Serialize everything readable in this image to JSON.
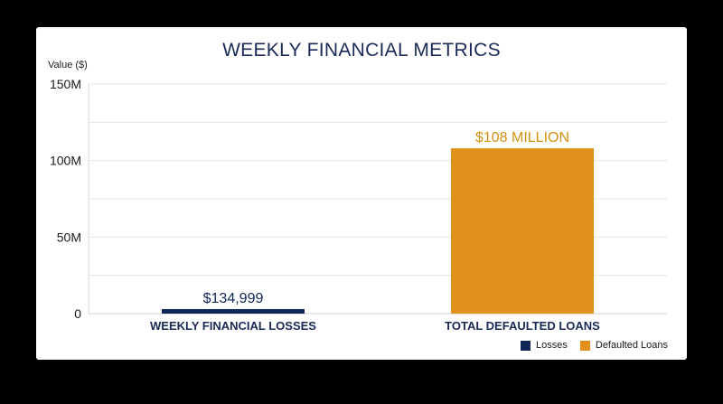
{
  "chart_data": {
    "type": "bar",
    "title": "WEEKLY FINANCIAL METRICS",
    "ylabel": "Value ($)",
    "xlabel": "",
    "ylim": [
      0,
      150000000
    ],
    "yticks": [
      {
        "value": 0,
        "label": "0"
      },
      {
        "value": 50000000,
        "label": "50M"
      },
      {
        "value": 100000000,
        "label": "100M"
      },
      {
        "value": 150000000,
        "label": "150M"
      }
    ],
    "grid": true,
    "legend_position": "bottom-right",
    "categories": [
      "WEEKLY FINANCIAL LOSSES",
      "TOTAL DEFAULTED LOANS"
    ],
    "values": [
      134999,
      108000000
    ],
    "data_labels": [
      "$134,999",
      "$108 MILLION"
    ],
    "colors": [
      "#0f2657",
      "#e0901b"
    ],
    "label_colors": [
      "#0f2657",
      "#d4900f"
    ],
    "series": [
      {
        "name": "Losses",
        "color": "#0f2657"
      },
      {
        "name": "Defaulted Loans",
        "color": "#e0901b"
      }
    ]
  }
}
